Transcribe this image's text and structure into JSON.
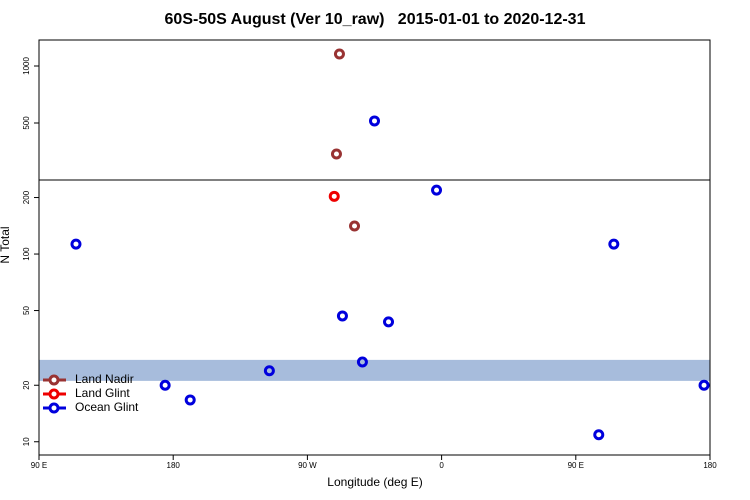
{
  "chart_data": [
    {
      "type": "scatter",
      "title": "60S-50S August (Ver 10_raw)   2015-01-01 to 2020-12-31",
      "log_scale": false,
      "ylim": [
        0,
        1228
      ],
      "yticks": [
        500,
        1000
      ],
      "xlim": [
        90,
        540
      ],
      "series": [
        {
          "color": "#993333",
          "x": [
            291.5,
            289.5
          ],
          "values": [
            1105,
            228
          ]
        },
        {
          "color": "#0000dd",
          "x": [
            315
          ],
          "values": [
            518
          ]
        }
      ]
    },
    {
      "type": "scatter",
      "xlabel": "Longitude (deg E)",
      "ylabel": "N Total",
      "log_scale": true,
      "ylim": [
        8.5,
        248
      ],
      "yticks": [
        10,
        20,
        50,
        100,
        200
      ],
      "xlim": [
        90,
        540
      ],
      "xticks": [
        {
          "value": 90,
          "label": "90 E"
        },
        180,
        {
          "value": 270,
          "label": "90 W"
        },
        {
          "value": 360,
          "label": "0"
        },
        {
          "value": 450,
          "label": "90 E"
        },
        {
          "value": 540,
          "label": "180"
        }
      ],
      "band": {
        "range": [
          21.1,
          27.3
        ],
        "color": "#a7bcdc"
      },
      "legend": "lower left",
      "series": [
        {
          "name": "Land Nadir",
          "color": "#993333",
          "x": [
            301.6
          ],
          "values": [
            141
          ]
        },
        {
          "name": "Land Glint",
          "color": "#ee0000",
          "x": [
            288
          ],
          "values": [
            203
          ]
        },
        {
          "name": "Ocean Glint",
          "color": "#0000dd",
          "x": [
            356.6,
            114.8,
            475.5,
            293.5,
            324.4,
            306.9,
            244.5,
            174.6,
            191.4,
            536,
            465.4
          ],
          "values": [
            219,
            113,
            113,
            46.8,
            43.5,
            26.6,
            23.9,
            20,
            16.7,
            20,
            10.9
          ]
        }
      ]
    }
  ]
}
